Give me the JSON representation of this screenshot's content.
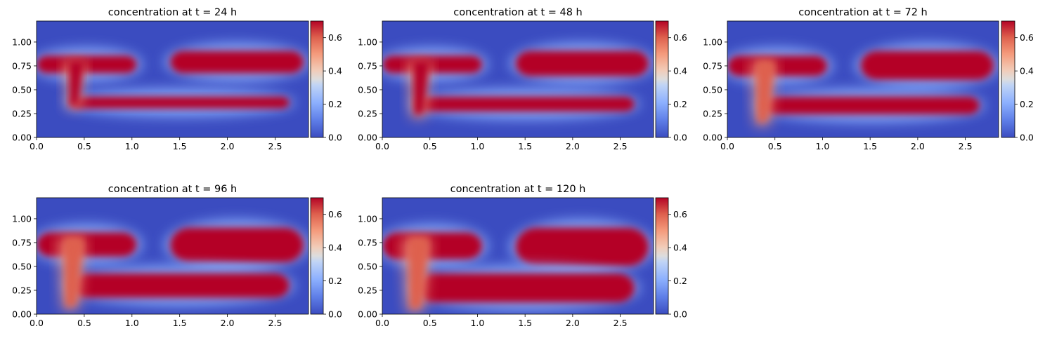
{
  "chart_data": [
    {
      "type": "heatmap",
      "title": "concentration at t = 24 h",
      "xlim": [
        0,
        2.85
      ],
      "ylim": [
        0,
        1.22
      ],
      "xticks": [
        "0.0",
        "0.5",
        "1.0",
        "1.5",
        "2.0",
        "2.5"
      ],
      "yticks": [
        "0.00",
        "0.25",
        "0.50",
        "0.75",
        "1.00"
      ],
      "colorbar": {
        "min": 0,
        "max": 0.7,
        "ticks": [
          "0.0",
          "0.2",
          "0.4",
          "0.6"
        ]
      },
      "colormap": "coolwarm",
      "regions": [
        {
          "shape": "upper-left-band",
          "x": [
            0.0,
            1.05
          ],
          "y": [
            0.65,
            0.88
          ],
          "value": 0.68
        },
        {
          "shape": "upper-right-band",
          "x": [
            1.4,
            2.8
          ],
          "y": [
            0.65,
            0.93
          ],
          "value": 0.67
        },
        {
          "shape": "lower-band",
          "x": [
            0.35,
            2.65
          ],
          "y": [
            0.28,
            0.45
          ],
          "value": 0.69
        },
        {
          "shape": "vertical-plume",
          "x": [
            0.28,
            0.52
          ],
          "y": [
            0.3,
            0.8
          ],
          "value": 0.62
        }
      ]
    },
    {
      "type": "heatmap",
      "title": "concentration at t = 48 h",
      "xlim": [
        0,
        2.85
      ],
      "ylim": [
        0,
        1.22
      ],
      "xticks": [
        "0.0",
        "0.5",
        "1.0",
        "1.5",
        "2.0",
        "2.5"
      ],
      "yticks": [
        "0.00",
        "0.25",
        "0.50",
        "0.75",
        "1.00"
      ],
      "colorbar": {
        "min": 0,
        "max": 0.7,
        "ticks": [
          "0.0",
          "0.2",
          "0.4",
          "0.6"
        ]
      },
      "colormap": "coolwarm",
      "regions": [
        {
          "shape": "upper-left-band",
          "x": [
            0.0,
            1.05
          ],
          "y": [
            0.65,
            0.88
          ],
          "value": 0.68
        },
        {
          "shape": "upper-right-band",
          "x": [
            1.4,
            2.8
          ],
          "y": [
            0.62,
            0.93
          ],
          "value": 0.67
        },
        {
          "shape": "lower-band",
          "x": [
            0.35,
            2.65
          ],
          "y": [
            0.25,
            0.45
          ],
          "value": 0.69
        },
        {
          "shape": "vertical-plume",
          "x": [
            0.26,
            0.52
          ],
          "y": [
            0.2,
            0.8
          ],
          "value": 0.6
        }
      ]
    },
    {
      "type": "heatmap",
      "title": "concentration at t = 72 h",
      "xlim": [
        0,
        2.85
      ],
      "ylim": [
        0,
        1.22
      ],
      "xticks": [
        "0.0",
        "0.5",
        "1.0",
        "1.5",
        "2.0",
        "2.5"
      ],
      "yticks": [
        "0.00",
        "0.25",
        "0.50",
        "0.75",
        "1.00"
      ],
      "colorbar": {
        "min": 0,
        "max": 0.7,
        "ticks": [
          "0.0",
          "0.2",
          "0.4",
          "0.6"
        ]
      },
      "colormap": "coolwarm",
      "regions": [
        {
          "shape": "upper-left-band",
          "x": [
            0.0,
            1.05
          ],
          "y": [
            0.62,
            0.88
          ],
          "value": 0.68
        },
        {
          "shape": "upper-right-band",
          "x": [
            1.4,
            2.8
          ],
          "y": [
            0.58,
            0.93
          ],
          "value": 0.67
        },
        {
          "shape": "lower-band",
          "x": [
            0.35,
            2.65
          ],
          "y": [
            0.22,
            0.45
          ],
          "value": 0.69
        },
        {
          "shape": "vertical-plume",
          "x": [
            0.24,
            0.52
          ],
          "y": [
            0.12,
            0.8
          ],
          "value": 0.58
        }
      ]
    },
    {
      "type": "heatmap",
      "title": "concentration at t = 96 h",
      "xlim": [
        0,
        2.85
      ],
      "ylim": [
        0,
        1.22
      ],
      "xticks": [
        "0.0",
        "0.5",
        "1.0",
        "1.5",
        "2.0",
        "2.5"
      ],
      "yticks": [
        "0.00",
        "0.25",
        "0.50",
        "0.75",
        "1.00"
      ],
      "colorbar": {
        "min": 0,
        "max": 0.7,
        "ticks": [
          "0.0",
          "0.2",
          "0.4",
          "0.6"
        ]
      },
      "colormap": "coolwarm",
      "regions": [
        {
          "shape": "upper-left-band",
          "x": [
            0.0,
            1.05
          ],
          "y": [
            0.58,
            0.88
          ],
          "value": 0.68
        },
        {
          "shape": "upper-right-band",
          "x": [
            1.4,
            2.8
          ],
          "y": [
            0.52,
            0.93
          ],
          "value": 0.67
        },
        {
          "shape": "lower-band",
          "x": [
            0.35,
            2.65
          ],
          "y": [
            0.15,
            0.45
          ],
          "value": 0.69
        },
        {
          "shape": "vertical-plume",
          "x": [
            0.22,
            0.52
          ],
          "y": [
            0.04,
            0.8
          ],
          "value": 0.55
        }
      ]
    },
    {
      "type": "heatmap",
      "title": "concentration at t = 120 h",
      "xlim": [
        0,
        2.85
      ],
      "ylim": [
        0,
        1.22
      ],
      "xticks": [
        "0.0",
        "0.5",
        "1.0",
        "1.5",
        "2.0",
        "2.5"
      ],
      "yticks": [
        "0.00",
        "0.25",
        "0.50",
        "0.75",
        "1.00"
      ],
      "colorbar": {
        "min": 0,
        "max": 0.7,
        "ticks": [
          "0.0",
          "0.2",
          "0.4",
          "0.6"
        ]
      },
      "colormap": "coolwarm",
      "regions": [
        {
          "shape": "upper-left-band",
          "x": [
            0.0,
            1.05
          ],
          "y": [
            0.55,
            0.88
          ],
          "value": 0.68
        },
        {
          "shape": "upper-right-band",
          "x": [
            1.4,
            2.8
          ],
          "y": [
            0.48,
            0.93
          ],
          "value": 0.67
        },
        {
          "shape": "lower-band",
          "x": [
            0.35,
            2.65
          ],
          "y": [
            0.1,
            0.45
          ],
          "value": 0.69
        },
        {
          "shape": "vertical-plume",
          "x": [
            0.2,
            0.52
          ],
          "y": [
            0.02,
            0.8
          ],
          "value": 0.53
        }
      ]
    }
  ],
  "colors": {
    "low": "#3b4cc0",
    "mid": "#dddddd",
    "high": "#b40426"
  }
}
